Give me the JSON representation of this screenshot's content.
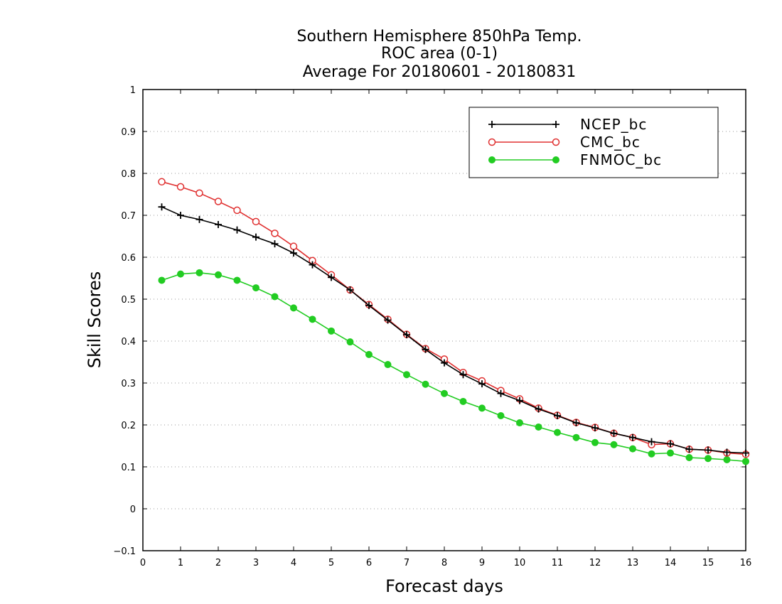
{
  "chart_data": {
    "type": "line",
    "title_lines": [
      "Southern Hemisphere 850hPa Temp.",
      "ROC area (0-1)",
      "Average For 20180601 - 20180831"
    ],
    "xlabel": "Forecast days",
    "ylabel": "Skill Scores",
    "xlim": [
      0,
      16
    ],
    "ylim": [
      -0.1,
      1
    ],
    "x_ticks": [
      "0",
      "1",
      "2",
      "3",
      "4",
      "5",
      "6",
      "7",
      "8",
      "9",
      "10",
      "11",
      "12",
      "13",
      "14",
      "15",
      "16"
    ],
    "y_ticks": [
      "−0.1",
      "0",
      "0.1",
      "0.2",
      "0.3",
      "0.4",
      "0.5",
      "0.6",
      "0.7",
      "0.8",
      "0.9",
      "1"
    ],
    "grid": "horizontal dotted",
    "legend_position": "top-right",
    "x": [
      0.5,
      1,
      1.5,
      2,
      2.5,
      3,
      3.5,
      4,
      4.5,
      5,
      5.5,
      6,
      6.5,
      7,
      7.5,
      8,
      8.5,
      9,
      9.5,
      10,
      10.5,
      11,
      11.5,
      12,
      12.5,
      13,
      13.5,
      14,
      14.5,
      15,
      15.5,
      16
    ],
    "series": [
      {
        "name": "NCEP_bc",
        "color": "#000000",
        "marker": "plus",
        "values": [
          0.72,
          0.7,
          0.69,
          0.678,
          0.665,
          0.648,
          0.632,
          0.61,
          0.582,
          0.552,
          0.522,
          0.485,
          0.45,
          0.415,
          0.38,
          0.348,
          0.32,
          0.298,
          0.275,
          0.258,
          0.238,
          0.222,
          0.205,
          0.193,
          0.18,
          0.17,
          0.16,
          0.155,
          0.142,
          0.14,
          0.135,
          0.133
        ]
      },
      {
        "name": "CMC_bc",
        "color": "#e03030",
        "marker": "open-circle",
        "values": [
          0.78,
          0.768,
          0.753,
          0.733,
          0.712,
          0.685,
          0.657,
          0.626,
          0.592,
          0.558,
          0.522,
          0.487,
          0.452,
          0.416,
          0.382,
          0.357,
          0.325,
          0.305,
          0.282,
          0.262,
          0.24,
          0.223,
          0.206,
          0.194,
          0.18,
          0.17,
          0.153,
          0.155,
          0.142,
          0.14,
          0.133,
          0.13
        ]
      },
      {
        "name": "FNMOC_bc",
        "color": "#22cc22",
        "marker": "filled-circle",
        "values": [
          0.545,
          0.56,
          0.563,
          0.558,
          0.545,
          0.527,
          0.506,
          0.479,
          0.452,
          0.424,
          0.398,
          0.368,
          0.344,
          0.32,
          0.297,
          0.275,
          0.256,
          0.24,
          0.222,
          0.205,
          0.195,
          0.182,
          0.17,
          0.158,
          0.153,
          0.143,
          0.131,
          0.133,
          0.122,
          0.12,
          0.117,
          0.113
        ]
      }
    ]
  }
}
